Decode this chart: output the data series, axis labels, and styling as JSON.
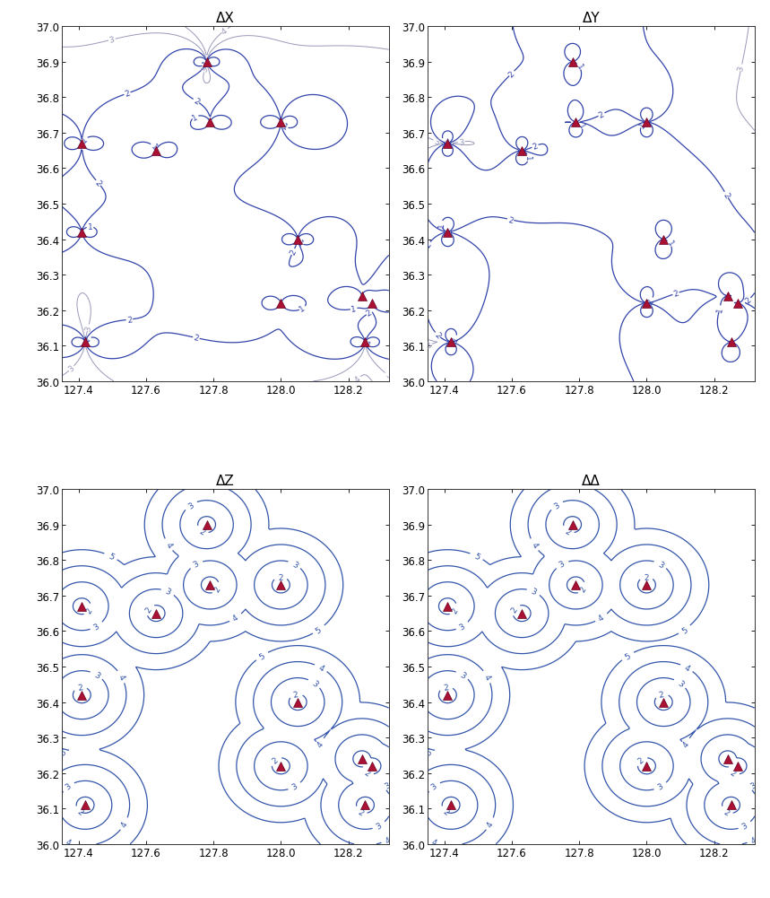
{
  "title_fontsize": 11,
  "tick_fontsize": 8.5,
  "background_color": "#ffffff",
  "xlim": [
    127.35,
    128.32
  ],
  "ylim": [
    36.0,
    37.0
  ],
  "xticks": [
    127.4,
    127.6,
    127.8,
    128.0,
    128.2
  ],
  "yticks": [
    36.0,
    36.1,
    36.2,
    36.3,
    36.4,
    36.5,
    36.6,
    36.7,
    36.8,
    36.9,
    37.0
  ],
  "stations": [
    [
      127.41,
      36.67
    ],
    [
      127.42,
      36.11
    ],
    [
      127.63,
      36.65
    ],
    [
      127.78,
      36.9
    ],
    [
      127.79,
      36.73
    ],
    [
      128.0,
      36.22
    ],
    [
      128.05,
      36.4
    ],
    [
      128.24,
      36.24
    ],
    [
      128.25,
      36.11
    ],
    [
      128.27,
      36.22
    ],
    [
      128.0,
      36.73
    ],
    [
      127.41,
      36.42
    ]
  ],
  "titles": [
    "ΔX",
    "ΔY",
    "ΔZ",
    "ΔΔ"
  ],
  "xy_dark_color": "#3344aa",
  "xy_light_color": "#9999bb",
  "z_dark_color": "#3355aa",
  "z_mid_color": "#7799bb",
  "z_light_color": "#aabbcc",
  "z_lighter_color": "#bbccdd",
  "delta_orange_color": "#cc9944",
  "delta_teal_color": "#66aabb",
  "delta_dark_color": "#3355aa"
}
